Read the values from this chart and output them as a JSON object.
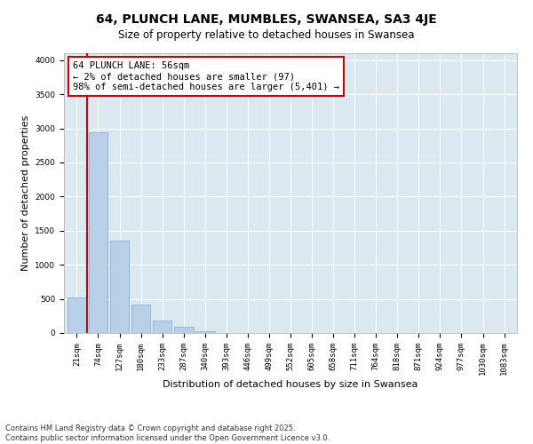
{
  "title": "64, PLUNCH LANE, MUMBLES, SWANSEA, SA3 4JE",
  "subtitle": "Size of property relative to detached houses in Swansea",
  "xlabel": "Distribution of detached houses by size in Swansea",
  "ylabel": "Number of detached properties",
  "categories": [
    "21sqm",
    "74sqm",
    "127sqm",
    "180sqm",
    "233sqm",
    "287sqm",
    "340sqm",
    "393sqm",
    "446sqm",
    "499sqm",
    "552sqm",
    "605sqm",
    "658sqm",
    "711sqm",
    "764sqm",
    "818sqm",
    "871sqm",
    "924sqm",
    "977sqm",
    "1030sqm",
    "1083sqm"
  ],
  "values": [
    520,
    2940,
    1350,
    420,
    185,
    85,
    30,
    5,
    0,
    0,
    0,
    0,
    0,
    0,
    0,
    0,
    0,
    0,
    0,
    0,
    0
  ],
  "bar_color": "#b8d0e8",
  "bar_edge_color": "#7aaac8",
  "vline_color": "#cc0000",
  "annotation_text": "64 PLUNCH LANE: 56sqm\n← 2% of detached houses are smaller (97)\n98% of semi-detached houses are larger (5,401) →",
  "annotation_box_color": "#cc0000",
  "ylim": [
    0,
    4100
  ],
  "yticks": [
    0,
    500,
    1000,
    1500,
    2000,
    2500,
    3000,
    3500,
    4000
  ],
  "bg_color": "#dce8f0",
  "grid_color": "#ffffff",
  "footer_line1": "Contains HM Land Registry data © Crown copyright and database right 2025.",
  "footer_line2": "Contains public sector information licensed under the Open Government Licence v3.0.",
  "title_fontsize": 10,
  "subtitle_fontsize": 8.5,
  "tick_fontsize": 6.5,
  "ylabel_fontsize": 8,
  "xlabel_fontsize": 8,
  "footer_fontsize": 6,
  "annotation_fontsize": 7.5
}
